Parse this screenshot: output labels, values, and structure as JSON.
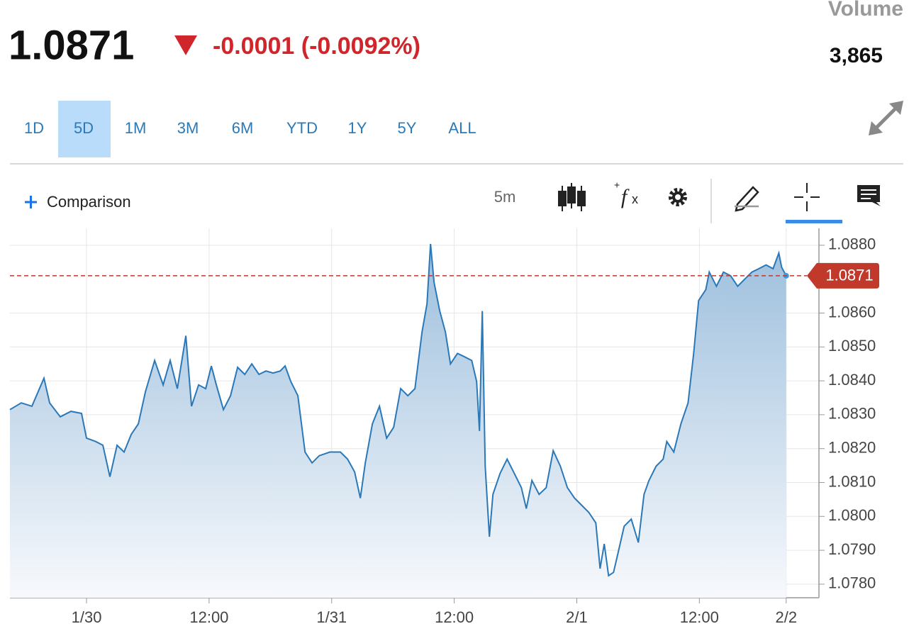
{
  "header": {
    "price": "1.0871",
    "change": "-0.0001 (-0.0092%)",
    "volume_label": "Volume",
    "volume": "3,865"
  },
  "ranges": [
    "1D",
    "5D",
    "1M",
    "3M",
    "6M",
    "YTD",
    "1Y",
    "5Y",
    "ALL"
  ],
  "selected_range": 1,
  "toolbar": {
    "comparison": "Comparison",
    "interval": "5m"
  },
  "chart_data": {
    "type": "area",
    "color": "#2a78b8",
    "last_price": 1.0871,
    "last_color": "#c0392b",
    "grid": true,
    "x": [
      -7.5,
      -6.39,
      -5.35,
      -4.17,
      -3.61,
      -2.57,
      -1.53,
      -0.49,
      0,
      0.9,
      1.6,
      2.29,
      2.99,
      3.68,
      4.38,
      5.07,
      5.76,
      6.67,
      7.5,
      8.19,
      8.89,
      9.72,
      10.28,
      10.97,
      11.67,
      12.22,
      12.71,
      13.4,
      14.1,
      14.79,
      15.49,
      16.18,
      16.88,
      17.57,
      18.26,
      18.96,
      19.44,
      20,
      20.69,
      21.39,
      22.08,
      22.78,
      23.82,
      24.86,
      25.56,
      26.25,
      26.81,
      27.29,
      27.99,
      28.68,
      29.38,
      30.07,
      30.76,
      31.46,
      32.15,
      32.85,
      33.33,
      33.68,
      34.03,
      34.58,
      35.14,
      35.63,
      36.32,
      37.01,
      37.71,
      38.19,
      38.47,
      38.75,
      39.03,
      39.44,
      39.79,
      40.49,
      41.18,
      41.88,
      42.57,
      43.06,
      43.61,
      44.31,
      45,
      45.69,
      46.39,
      47.08,
      47.78,
      48.47,
      49.17,
      49.86,
      50.28,
      50.69,
      51.11,
      51.6,
      52.08,
      52.64,
      53.33,
      54.03,
      54.58,
      55.07,
      55.76,
      56.46,
      56.81,
      57.5,
      58.19,
      58.89,
      59.44,
      59.93,
      60.63,
      60.97,
      61.67,
      62.36,
      63.06,
      63.75,
      64.44,
      65.14,
      65.83,
      66.53,
      67.22,
      67.78,
      68.06,
      68.5
    ],
    "values": [
      1.08315,
      1.08335,
      1.08325,
      1.08408,
      1.08335,
      1.08294,
      1.0831,
      1.08304,
      1.08231,
      1.08221,
      1.0821,
      1.08117,
      1.0821,
      1.0819,
      1.08242,
      1.08273,
      1.08367,
      1.0846,
      1.08388,
      1.0846,
      1.08377,
      1.08533,
      1.08325,
      1.08388,
      1.08377,
      1.08444,
      1.08388,
      1.08315,
      1.08356,
      1.0844,
      1.08419,
      1.0845,
      1.08419,
      1.08429,
      1.08423,
      1.08429,
      1.08444,
      1.08398,
      1.08356,
      1.0819,
      1.08158,
      1.08179,
      1.0819,
      1.0819,
      1.08169,
      1.08131,
      1.08054,
      1.08158,
      1.08273,
      1.08325,
      1.08231,
      1.08263,
      1.08377,
      1.08356,
      1.08377,
      1.08544,
      1.08627,
      1.08804,
      1.0869,
      1.08606,
      1.08544,
      1.0845,
      1.08481,
      1.08471,
      1.0846,
      1.08398,
      1.08252,
      1.08606,
      1.08148,
      1.0794,
      1.08065,
      1.08127,
      1.08169,
      1.08127,
      1.08085,
      1.08023,
      1.08106,
      1.08065,
      1.08085,
      1.08194,
      1.08148,
      1.08085,
      1.08054,
      1.08033,
      1.08012,
      1.07981,
      1.07846,
      1.07919,
      1.07825,
      1.07835,
      1.07898,
      1.07971,
      1.07992,
      1.07923,
      1.08065,
      1.08106,
      1.08148,
      1.08169,
      1.08221,
      1.0819,
      1.08273,
      1.08335,
      1.08481,
      1.08637,
      1.08669,
      1.08721,
      1.08679,
      1.08721,
      1.0871,
      1.08679,
      1.087,
      1.08721,
      1.08731,
      1.08742,
      1.08731,
      1.08777,
      1.08735,
      1.0871
    ],
    "xlim": [
      -7.5,
      71.5
    ],
    "xticks": [
      {
        "value": 0,
        "label": "1/30"
      },
      {
        "value": 12,
        "label": "12:00"
      },
      {
        "value": 24,
        "label": "1/31"
      },
      {
        "value": 36,
        "label": "12:00"
      },
      {
        "value": 48,
        "label": "2/1"
      },
      {
        "value": 60,
        "label": "12:00"
      },
      {
        "value": 68.5,
        "label": "2/2"
      }
    ],
    "ylim": [
      1.0776,
      1.0885
    ],
    "yticks": [
      {
        "value": 1.078,
        "label": "1.0780"
      },
      {
        "value": 1.079,
        "label": "1.0790"
      },
      {
        "value": 1.08,
        "label": "1.0800"
      },
      {
        "value": 1.081,
        "label": "1.0810"
      },
      {
        "value": 1.082,
        "label": "1.0820"
      },
      {
        "value": 1.083,
        "label": "1.0830"
      },
      {
        "value": 1.084,
        "label": "1.0840"
      },
      {
        "value": 1.085,
        "label": "1.0850"
      },
      {
        "value": 1.086,
        "label": "1.0860"
      },
      {
        "value": 1.088,
        "label": "1.0880"
      }
    ]
  }
}
